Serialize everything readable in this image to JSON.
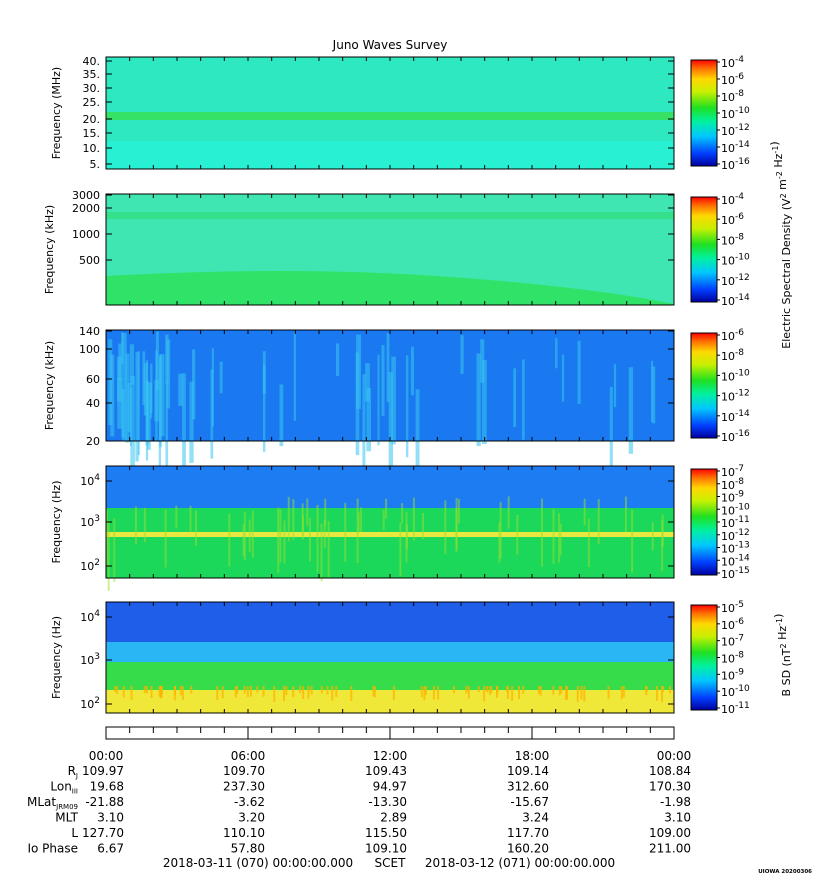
{
  "title": "Juno Waves Survey",
  "panels": [
    {
      "ylabel": "Frequency (MHz)",
      "yticks": [
        "40.",
        "35.",
        "30.",
        "25.",
        "20.",
        "15.",
        "10.",
        "5."
      ],
      "cbar_ticks": [
        "10^-4",
        "10^-6",
        "10^-8",
        "10^-10",
        "10^-12",
        "10^-14",
        "10^-16"
      ],
      "colors": {
        "base": "#2de8c0",
        "band": "#36e266",
        "noise": "#28f0d2"
      }
    },
    {
      "ylabel": "Frequency (kHz)",
      "yticks": [
        "3000",
        "2000",
        "1000",
        "500"
      ],
      "cbar_ticks": [
        "10^-4",
        "10^-6",
        "10^-8",
        "10^-10",
        "10^-12",
        "10^-14"
      ],
      "colors": {
        "base": "#40e6b2",
        "band": "#2fe05a",
        "noise": "#30e8c4"
      }
    },
    {
      "ylabel": "Frequency (kHz)",
      "yticks": [
        "140",
        "100",
        "60",
        "40",
        "20"
      ],
      "cbar_ticks": [
        "10^-6",
        "10^-8",
        "10^-10",
        "10^-12",
        "10^-14",
        "10^-16"
      ],
      "colors": {
        "base": "#1a78f0",
        "band": "#38c6f2",
        "noise": "#5ad0ff"
      }
    },
    {
      "ylabel": "Frequency (Hz)",
      "yticks": [
        "10^4",
        "10^3",
        "10^2"
      ],
      "cbar_ticks": [
        "10^-7",
        "10^-8",
        "10^-9",
        "10^-10",
        "10^-11",
        "10^-12",
        "10^-13",
        "10^-14",
        "10^-15"
      ],
      "colors": {
        "base": "#2ec0ff",
        "band": "#e8e840",
        "noise": "#1bd85a"
      }
    },
    {
      "ylabel": "Frequency (Hz)",
      "yticks": [
        "10^4",
        "10^3",
        "10^2"
      ],
      "cbar_ticks": [
        "10^-5",
        "10^-6",
        "10^-7",
        "10^-8",
        "10^-9",
        "10^-10",
        "10^-11"
      ],
      "colors": {
        "base": "#1f5ee8",
        "band": "#f0e838",
        "noise": "#36dc4a"
      }
    }
  ],
  "colorbar_labels": {
    "electric": "Electric Spectral Density (V^2 m^-2 Hz^-1)",
    "magnetic": "B SD (nT^2 Hz^-1)"
  },
  "time_ticks": [
    "00:00",
    "06:00",
    "12:00",
    "18:00",
    "00:00"
  ],
  "ephemeris": [
    {
      "label": "R_J",
      "values": [
        "109.97",
        "109.70",
        "109.43",
        "109.14",
        "108.84"
      ]
    },
    {
      "label": "Lon_III",
      "values": [
        "19.68",
        "237.30",
        "94.97",
        "312.60",
        "170.30"
      ]
    },
    {
      "label": "MLat_JRM09",
      "values": [
        "-21.88",
        "-3.62",
        "-13.30",
        "-15.67",
        "-1.98"
      ]
    },
    {
      "label": "MLT",
      "values": [
        "3.10",
        "3.20",
        "2.89",
        "3.24",
        "3.10"
      ]
    },
    {
      "label": "L",
      "values": [
        "127.70",
        "110.10",
        "115.50",
        "117.70",
        "109.00"
      ]
    },
    {
      "label": "Io Phase",
      "values": [
        "6.67",
        "57.80",
        "109.10",
        "160.20",
        "211.00"
      ]
    }
  ],
  "footer": {
    "start": "2018-03-11 (070) 00:00:00.000",
    "scet": "SCET",
    "end": "2018-03-12 (071) 00:00:00.000"
  },
  "stamp": "UIOWA 20200306",
  "chart_data": [
    {
      "type": "heatmap",
      "title": "Juno Waves Survey",
      "ylabel": "Frequency (MHz)",
      "ylim": [
        3,
        41
      ],
      "x_range": [
        "2018-03-11 00:00",
        "2018-03-12 00:00"
      ],
      "colorbar": {
        "range": [
          -16,
          -4
        ],
        "scale": "log"
      }
    },
    {
      "type": "heatmap",
      "ylabel": "Frequency (kHz)",
      "ylim": [
        150,
        3000
      ],
      "yscale": "log",
      "colorbar": {
        "range": [
          -14,
          -4
        ],
        "scale": "log"
      }
    },
    {
      "type": "heatmap",
      "ylabel": "Frequency (kHz)",
      "ylim": [
        20,
        140
      ],
      "colorbar": {
        "range": [
          -16,
          -6
        ],
        "scale": "log"
      }
    },
    {
      "type": "heatmap",
      "ylabel": "Frequency (Hz)",
      "ylim": [
        50,
        20000
      ],
      "yscale": "log",
      "colorbar": {
        "range": [
          -15,
          -7
        ],
        "scale": "log"
      }
    },
    {
      "type": "heatmap",
      "ylabel": "Frequency (Hz)",
      "ylim": [
        50,
        20000
      ],
      "yscale": "log",
      "colorbar": {
        "range": [
          -11,
          -5
        ],
        "scale": "log"
      }
    }
  ]
}
